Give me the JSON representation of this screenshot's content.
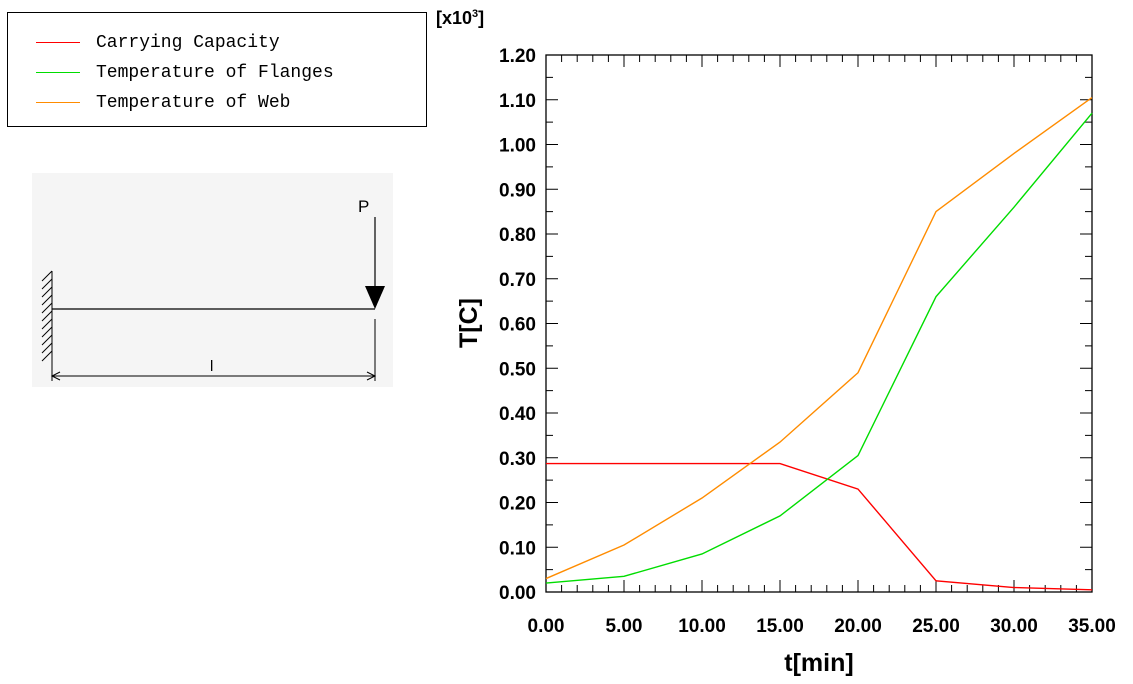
{
  "legend": {
    "items": [
      {
        "label": "Carrying Capacity",
        "color": "#ff0000"
      },
      {
        "label": "Temperature of Flanges",
        "color": "#00dd00"
      },
      {
        "label": "Temperature of Web",
        "color": "#ff8c00"
      }
    ]
  },
  "diagram": {
    "load_label": "P",
    "length_label": "l"
  },
  "axis_scale": {
    "prefix": "[x10",
    "exponent": "3",
    "suffix": "]"
  },
  "chart_data": {
    "type": "line",
    "xlabel": "t[min]",
    "ylabel": "T[C]",
    "xlim": [
      0,
      35
    ],
    "ylim": [
      0,
      1.2
    ],
    "x_ticks": [
      "0.00",
      "5.00",
      "10.00",
      "15.00",
      "20.00",
      "25.00",
      "30.00",
      "35.00"
    ],
    "y_ticks": [
      "0.00",
      "0.10",
      "0.20",
      "0.30",
      "0.40",
      "0.50",
      "0.60",
      "0.70",
      "0.80",
      "0.90",
      "1.00",
      "1.10",
      "1.20"
    ],
    "grid": false,
    "legend_position": "top-left",
    "series": [
      {
        "name": "Carrying Capacity",
        "color": "#ff0000",
        "x": [
          0,
          5,
          10,
          15,
          20,
          25,
          30,
          35
        ],
        "y": [
          0.287,
          0.287,
          0.287,
          0.287,
          0.23,
          0.025,
          0.01,
          0.005
        ]
      },
      {
        "name": "Temperature of Flanges",
        "color": "#00dd00",
        "x": [
          0,
          5,
          10,
          15,
          20,
          25,
          30,
          35
        ],
        "y": [
          0.02,
          0.035,
          0.085,
          0.17,
          0.305,
          0.66,
          0.86,
          1.07
        ]
      },
      {
        "name": "Temperature of Web",
        "color": "#ff8c00",
        "x": [
          0,
          5,
          10,
          15,
          20,
          25,
          30,
          35
        ],
        "y": [
          0.03,
          0.105,
          0.21,
          0.335,
          0.49,
          0.85,
          0.98,
          1.105
        ]
      }
    ]
  }
}
